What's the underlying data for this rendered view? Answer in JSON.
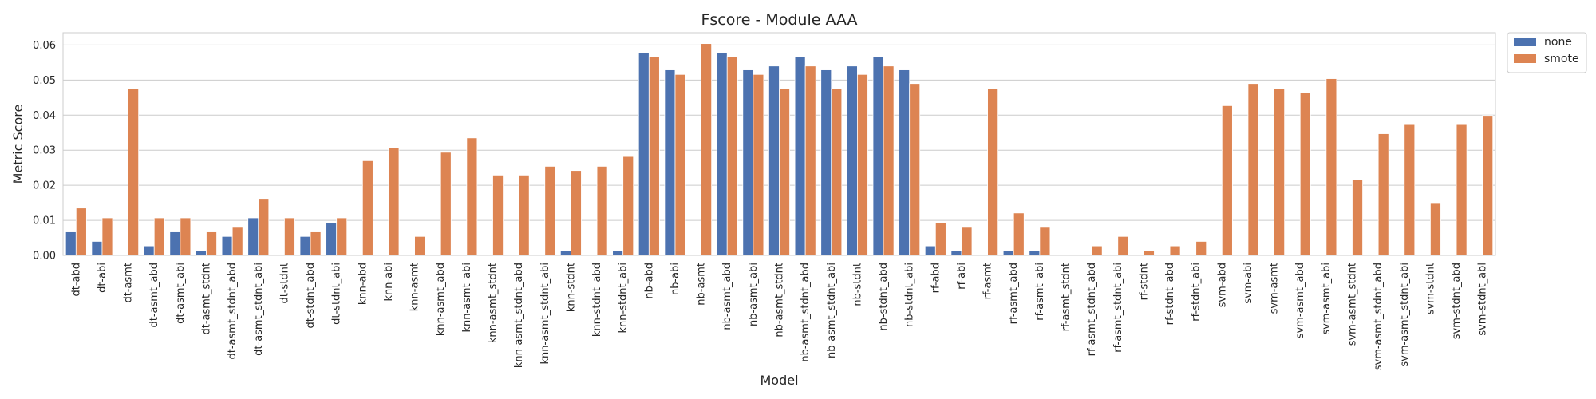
{
  "chart_data": {
    "type": "bar",
    "title": "Fscore - Module AAA",
    "xlabel": "Model",
    "ylabel": "Metric Score",
    "ylim": [
      0,
      0.0635
    ],
    "yticks": [
      0.0,
      0.01,
      0.02,
      0.03,
      0.04,
      0.05,
      0.06
    ],
    "ytick_labels": [
      "0.00",
      "0.01",
      "0.02",
      "0.03",
      "0.04",
      "0.05",
      "0.06"
    ],
    "grid": true,
    "legend_position": "outside-top-right",
    "categories": [
      "dt-abd",
      "dt-abi",
      "dt-asmt",
      "dt-asmt_abd",
      "dt-asmt_abi",
      "dt-asmt_stdnt",
      "dt-asmt_stdnt_abd",
      "dt-asmt_stdnt_abi",
      "dt-stdnt",
      "dt-stdnt_abd",
      "dt-stdnt_abi",
      "knn-abd",
      "knn-abi",
      "knn-asmt",
      "knn-asmt_abd",
      "knn-asmt_abi",
      "knn-asmt_stdnt",
      "knn-asmt_stdnt_abd",
      "knn-asmt_stdnt_abi",
      "knn-stdnt",
      "knn-stdnt_abd",
      "knn-stdnt_abi",
      "nb-abd",
      "nb-abi",
      "nb-asmt",
      "nb-asmt_abd",
      "nb-asmt_abi",
      "nb-asmt_stdnt",
      "nb-asmt_stdnt_abd",
      "nb-asmt_stdnt_abi",
      "nb-stdnt",
      "nb-stdnt_abd",
      "nb-stdnt_abi",
      "rf-abd",
      "rf-abi",
      "rf-asmt",
      "rf-asmt_abd",
      "rf-asmt_abi",
      "rf-asmt_stdnt",
      "rf-asmt_stdnt_abd",
      "rf-asmt_stdnt_abi",
      "rf-stdnt",
      "rf-stdnt_abd",
      "rf-stdnt_abi",
      "svm-abd",
      "svm-abi",
      "svm-asmt",
      "svm-asmt_abd",
      "svm-asmt_abi",
      "svm-asmt_stdnt",
      "svm-asmt_stdnt_abd",
      "svm-asmt_stdnt_abi",
      "svm-stdnt",
      "svm-stdnt_abd",
      "svm-stdnt_abi"
    ],
    "series": [
      {
        "name": "none",
        "color": "#4c72b0",
        "values": [
          0.0067,
          0.004,
          0,
          0.0027,
          0.0067,
          0.0013,
          0.0054,
          0.0107,
          0,
          0.0054,
          0.0094,
          0,
          0,
          0,
          0,
          0,
          0,
          0,
          0,
          0.0013,
          0,
          0.0013,
          0.0577,
          0.0529,
          0,
          0.0577,
          0.0529,
          0.054,
          0.0567,
          0.0529,
          0.054,
          0.0567,
          0.0529,
          0.0027,
          0.0013,
          0,
          0.0013,
          0.0013,
          0,
          0,
          0,
          0,
          0,
          0,
          0,
          0,
          0,
          0,
          0,
          0,
          0,
          0,
          0,
          0,
          0
        ]
      },
      {
        "name": "smote",
        "color": "#dd8452",
        "values": [
          0.0135,
          0.0107,
          0.0475,
          0.0107,
          0.0107,
          0.0067,
          0.008,
          0.016,
          0.0107,
          0.0067,
          0.0107,
          0.027,
          0.0307,
          0.0054,
          0.0294,
          0.0335,
          0.0229,
          0.0229,
          0.0254,
          0.0242,
          0.0254,
          0.0282,
          0.0567,
          0.0516,
          0.0604,
          0.0567,
          0.0516,
          0.0475,
          0.054,
          0.0475,
          0.0516,
          0.054,
          0.049,
          0.0094,
          0.008,
          0.0475,
          0.0121,
          0.008,
          0,
          0.0027,
          0.0054,
          0.0013,
          0.0027,
          0.004,
          0.0427,
          0.049,
          0.0475,
          0.0465,
          0.0504,
          0.0217,
          0.0347,
          0.0373,
          0.0148,
          0.0373,
          0.0399
        ]
      }
    ]
  }
}
